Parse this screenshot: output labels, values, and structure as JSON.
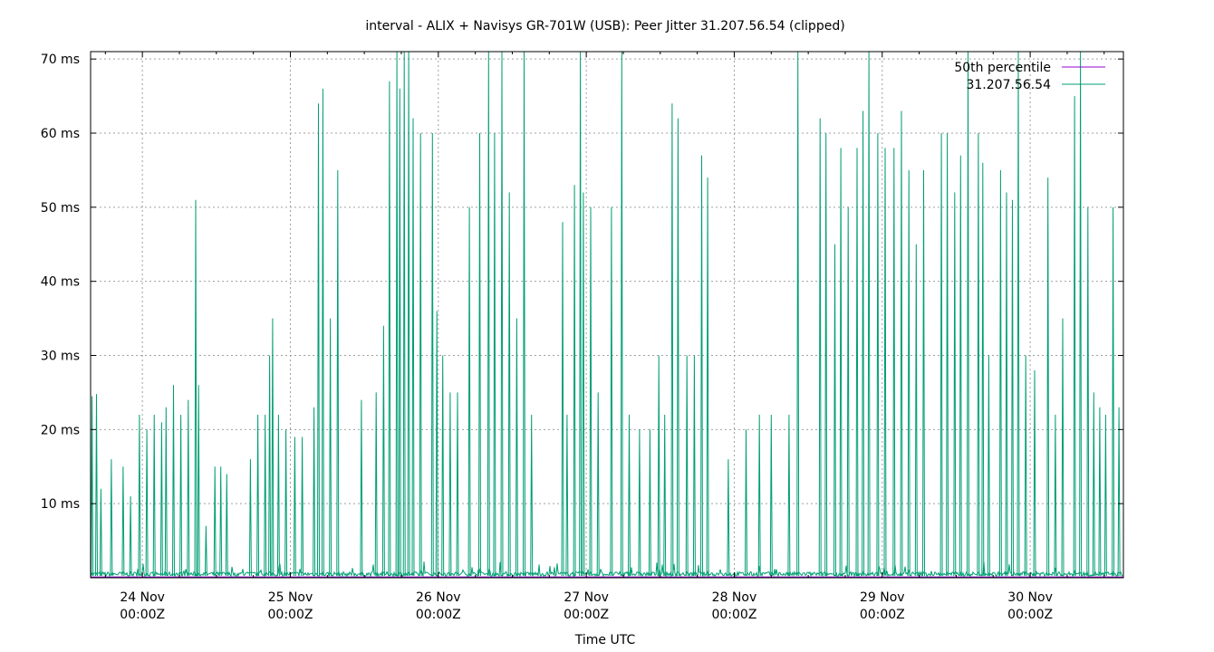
{
  "chart_data": {
    "type": "line",
    "title": "interval - ALIX + Navisys GR-701W (USB): Peer Jitter 31.207.56.54 (clipped)",
    "xlabel": "Time UTC",
    "ylabel": "",
    "ylim": [
      0,
      71
    ],
    "xlim_days": [
      23.65,
      30.63
    ],
    "grid": true,
    "legend_position": "top-right",
    "y_ticks": [
      {
        "value": 10,
        "label": "10 ms"
      },
      {
        "value": 20,
        "label": "20 ms"
      },
      {
        "value": 30,
        "label": "30 ms"
      },
      {
        "value": 40,
        "label": "40 ms"
      },
      {
        "value": 50,
        "label": "50 ms"
      },
      {
        "value": 60,
        "label": "60 ms"
      },
      {
        "value": 70,
        "label": "70 ms"
      }
    ],
    "x_ticks": [
      {
        "day": 24,
        "line1": "24 Nov",
        "line2": "00:00Z"
      },
      {
        "day": 25,
        "line1": "25 Nov",
        "line2": "00:00Z"
      },
      {
        "day": 26,
        "line1": "26 Nov",
        "line2": "00:00Z"
      },
      {
        "day": 27,
        "line1": "27 Nov",
        "line2": "00:00Z"
      },
      {
        "day": 28,
        "line1": "28 Nov",
        "line2": "00:00Z"
      },
      {
        "day": 29,
        "line1": "29 Nov",
        "line2": "00:00Z"
      },
      {
        "day": 30,
        "line1": "30 Nov",
        "line2": "00:00Z"
      }
    ],
    "series": [
      {
        "name": "50th percentile",
        "color": "#9400d3",
        "constant_ms": 0.1
      },
      {
        "name": "31.207.56.54",
        "color": "#009e73",
        "baseline_ms": 0.5,
        "spikes": [
          [
            23.66,
            24.5
          ],
          [
            23.69,
            24.8
          ],
          [
            23.72,
            12
          ],
          [
            23.79,
            16
          ],
          [
            23.87,
            15
          ],
          [
            23.92,
            11
          ],
          [
            23.98,
            22
          ],
          [
            24.03,
            20
          ],
          [
            24.08,
            22
          ],
          [
            24.13,
            21
          ],
          [
            24.16,
            23
          ],
          [
            24.21,
            26
          ],
          [
            24.26,
            22
          ],
          [
            24.31,
            24
          ],
          [
            24.36,
            51
          ],
          [
            24.38,
            26
          ],
          [
            24.43,
            7
          ],
          [
            24.49,
            15
          ],
          [
            24.53,
            15
          ],
          [
            24.57,
            14
          ],
          [
            24.73,
            16
          ],
          [
            24.78,
            22
          ],
          [
            24.83,
            22
          ],
          [
            24.86,
            30
          ],
          [
            24.88,
            35
          ],
          [
            24.92,
            22
          ],
          [
            24.97,
            20
          ],
          [
            25.03,
            19
          ],
          [
            25.08,
            19
          ],
          [
            25.16,
            23
          ],
          [
            25.19,
            64
          ],
          [
            25.22,
            66
          ],
          [
            25.27,
            35
          ],
          [
            25.32,
            55
          ],
          [
            25.48,
            24
          ],
          [
            25.58,
            25
          ],
          [
            25.63,
            34
          ],
          [
            25.67,
            67
          ],
          [
            25.72,
            72
          ],
          [
            25.74,
            66
          ],
          [
            25.77,
            72
          ],
          [
            25.8,
            72
          ],
          [
            25.83,
            62
          ],
          [
            25.88,
            60
          ],
          [
            25.96,
            60
          ],
          [
            25.99,
            36
          ],
          [
            26.03,
            30
          ],
          [
            26.08,
            25
          ],
          [
            26.13,
            25
          ],
          [
            26.21,
            50
          ],
          [
            26.28,
            60
          ],
          [
            26.34,
            72
          ],
          [
            26.38,
            60
          ],
          [
            26.43,
            72
          ],
          [
            26.48,
            52
          ],
          [
            26.53,
            35
          ],
          [
            26.58,
            72
          ],
          [
            26.63,
            22
          ],
          [
            26.84,
            48
          ],
          [
            26.87,
            22
          ],
          [
            26.92,
            53
          ],
          [
            26.96,
            72
          ],
          [
            26.98,
            52
          ],
          [
            27.03,
            50
          ],
          [
            27.08,
            25
          ],
          [
            27.17,
            50
          ],
          [
            27.24,
            72
          ],
          [
            27.29,
            22
          ],
          [
            27.36,
            20
          ],
          [
            27.43,
            20
          ],
          [
            27.49,
            30
          ],
          [
            27.53,
            22
          ],
          [
            27.58,
            64
          ],
          [
            27.62,
            62
          ],
          [
            27.68,
            30
          ],
          [
            27.73,
            30
          ],
          [
            27.78,
            57
          ],
          [
            27.82,
            54
          ],
          [
            27.96,
            16
          ],
          [
            28.08,
            20
          ],
          [
            28.17,
            22
          ],
          [
            28.25,
            22
          ],
          [
            28.37,
            22
          ],
          [
            28.43,
            72
          ],
          [
            28.58,
            62
          ],
          [
            28.62,
            60
          ],
          [
            28.68,
            45
          ],
          [
            28.72,
            58
          ],
          [
            28.77,
            50
          ],
          [
            28.83,
            58
          ],
          [
            28.87,
            63
          ],
          [
            28.91,
            72
          ],
          [
            28.97,
            60
          ],
          [
            29.02,
            58
          ],
          [
            29.08,
            58
          ],
          [
            29.13,
            63
          ],
          [
            29.18,
            55
          ],
          [
            29.23,
            45
          ],
          [
            29.28,
            55
          ],
          [
            29.4,
            60
          ],
          [
            29.44,
            60
          ],
          [
            29.49,
            52
          ],
          [
            29.53,
            57
          ],
          [
            29.58,
            72
          ],
          [
            29.65,
            60
          ],
          [
            29.68,
            56
          ],
          [
            29.72,
            30
          ],
          [
            29.8,
            55
          ],
          [
            29.84,
            52
          ],
          [
            29.88,
            51
          ],
          [
            29.92,
            72
          ],
          [
            29.97,
            30
          ],
          [
            30.03,
            28
          ],
          [
            30.12,
            54
          ],
          [
            30.17,
            22
          ],
          [
            30.22,
            35
          ],
          [
            30.3,
            65
          ],
          [
            30.34,
            71
          ],
          [
            30.39,
            50
          ],
          [
            30.43,
            25
          ],
          [
            30.47,
            23
          ],
          [
            30.51,
            22
          ],
          [
            30.56,
            50
          ],
          [
            30.6,
            23
          ]
        ]
      }
    ]
  },
  "legend": {
    "median_label": "50th percentile",
    "peer_label": "31.207.56.54"
  }
}
